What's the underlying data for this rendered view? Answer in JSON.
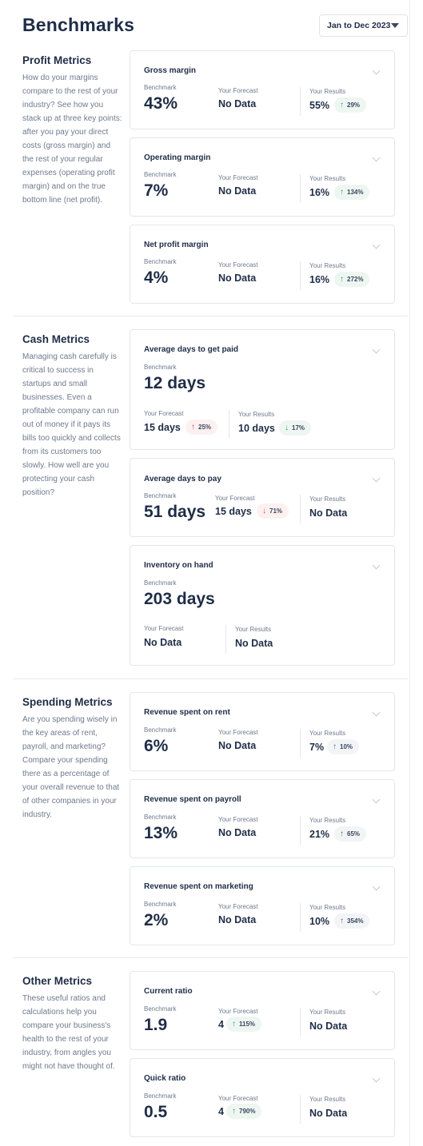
{
  "header": {
    "title": "Benchmarks",
    "date_range": "Jan to Dec 2023"
  },
  "labels": {
    "benchmark": "Benchmark",
    "forecast": "Your Forecast",
    "results": "Your Results"
  },
  "sections": {
    "profit": {
      "title": "Profit Metrics",
      "description": "How do your margins compare to the rest of your industry? See how you stack up at three key points: after you pay your direct costs (gross margin) and the rest of your regular expenses (operating profit margin) and on the true bottom line (net profit).",
      "cards": [
        {
          "title": "Gross margin",
          "benchmark": "43%",
          "forecast": "No Data",
          "results": "55%",
          "results_change": "29%",
          "results_trend": "up"
        },
        {
          "title": "Operating margin",
          "benchmark": "7%",
          "forecast": "No Data",
          "results": "16%",
          "results_change": "134%",
          "results_trend": "up"
        },
        {
          "title": "Net profit margin",
          "benchmark": "4%",
          "forecast": "No Data",
          "results": "16%",
          "results_change": "272%",
          "results_trend": "up"
        }
      ]
    },
    "cash": {
      "title": "Cash Metrics",
      "description": "Managing cash carefully is critical to success in startups and small businesses. Even a profitable company can run out of money if it pays its bills too quickly and collects from its customers too slowly. How well are you protecting your cash position?",
      "cards": [
        {
          "title": "Average days to get paid",
          "benchmark": "12 days",
          "forecast": "15 days",
          "forecast_change": "25%",
          "forecast_trend": "up-bad",
          "results": "10 days",
          "results_change": "17%",
          "results_trend": "down-good"
        },
        {
          "title": "Average days to pay",
          "benchmark": "51 days",
          "forecast": "15 days",
          "forecast_change": "71%",
          "forecast_trend": "down-bad",
          "results": "No Data"
        },
        {
          "title": "Inventory on hand",
          "benchmark": "203 days",
          "forecast": "No Data",
          "results": "No Data"
        }
      ]
    },
    "spending": {
      "title": "Spending Metrics",
      "description": "Are you spending wisely in the key areas of rent, payroll, and marketing? Compare your spending there as a percentage of your overall revenue to that of other companies in your industry.",
      "cards": [
        {
          "title": "Revenue spent on rent",
          "benchmark": "6%",
          "forecast": "No Data",
          "results": "7%",
          "results_change": "10%",
          "results_trend": "neutral"
        },
        {
          "title": "Revenue spent on payroll",
          "benchmark": "13%",
          "forecast": "No Data",
          "results": "21%",
          "results_change": "65%",
          "results_trend": "neutral"
        },
        {
          "title": "Revenue spent on marketing",
          "benchmark": "2%",
          "forecast": "No Data",
          "results": "10%",
          "results_change": "354%",
          "results_trend": "neutral"
        }
      ]
    },
    "other": {
      "title": "Other Metrics",
      "description": "These useful ratios and calculations help you compare your business's health to the rest of your industry, from angles you might not have thought of.",
      "cards": [
        {
          "title": "Current ratio",
          "benchmark": "1.9",
          "forecast": "4",
          "forecast_change": "115%",
          "forecast_trend": "up",
          "results": "No Data"
        },
        {
          "title": "Quick ratio",
          "benchmark": "0.5",
          "forecast": "4",
          "forecast_change": "790%",
          "forecast_trend": "up",
          "results": "No Data"
        }
      ]
    }
  },
  "colors": {
    "good": "#2f9d6a",
    "bad": "#d34b55",
    "neutral": "#5d6779",
    "text": "#1f2d47",
    "muted": "#6f7a8d"
  },
  "icons": {
    "up": "arrow-up-icon",
    "down": "arrow-down-icon",
    "expand": "chevron-down-icon",
    "dropdown": "caret-down-icon"
  }
}
